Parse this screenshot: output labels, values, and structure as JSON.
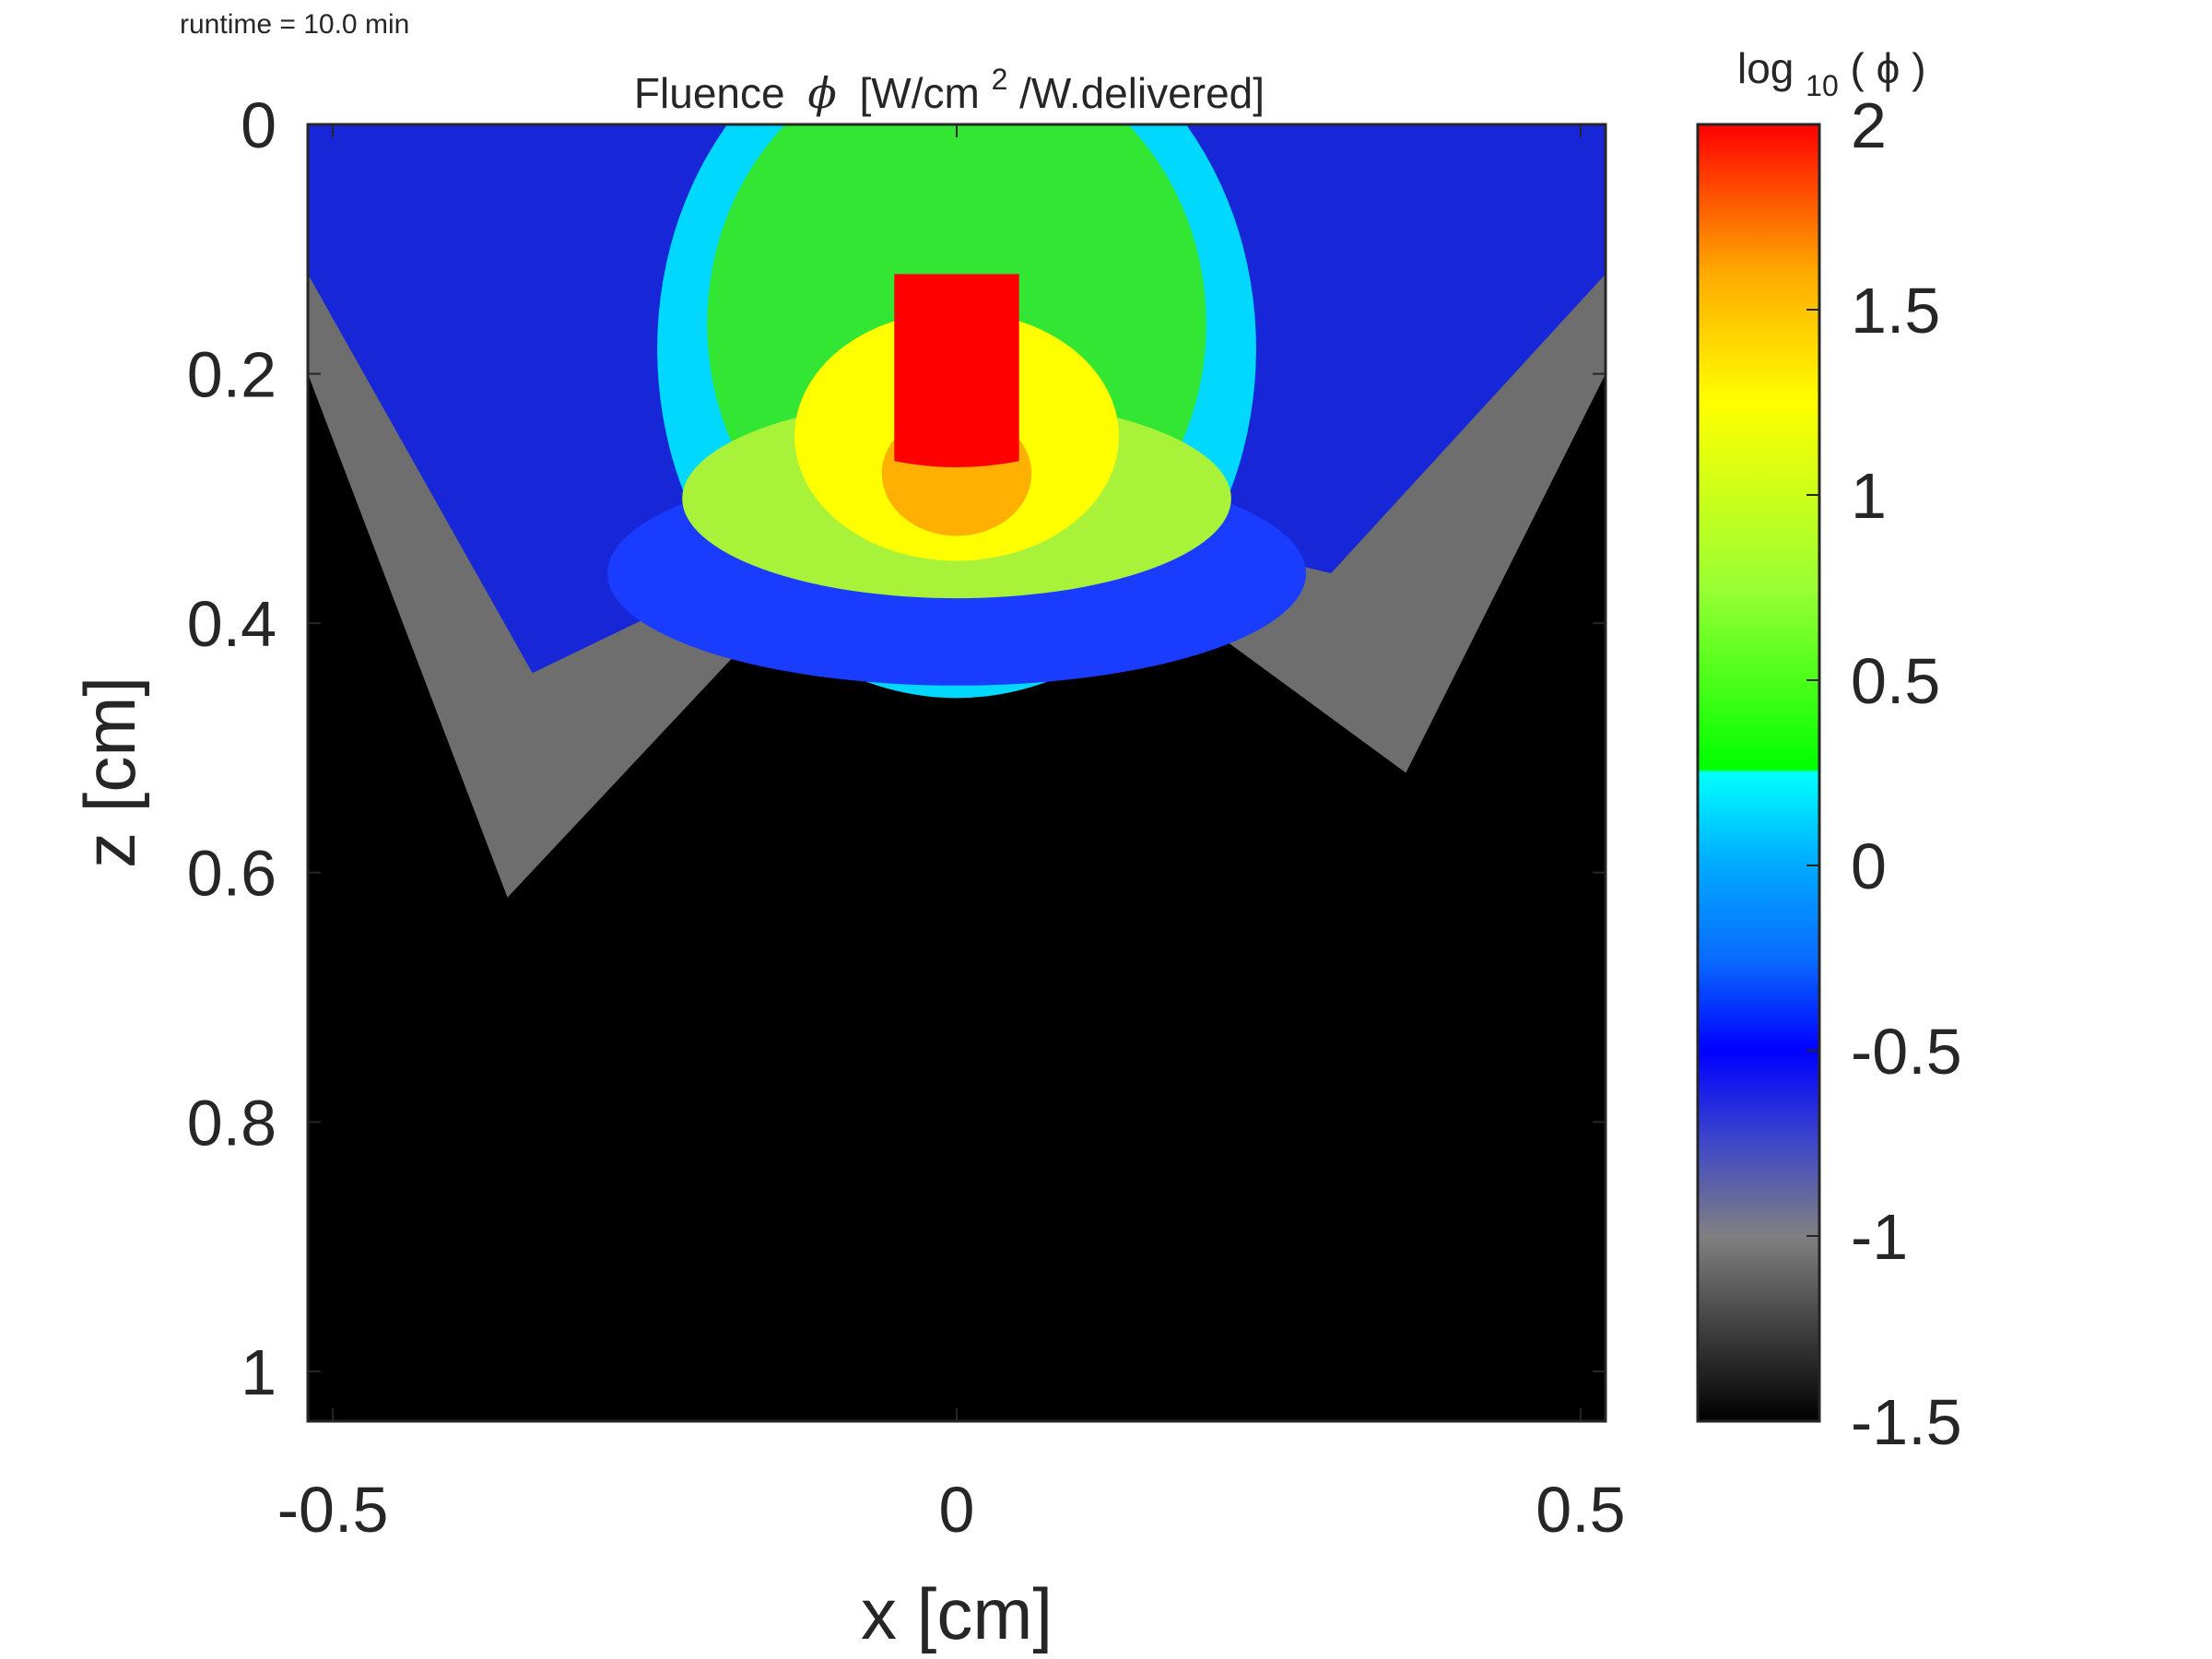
{
  "header": {
    "runtime": "runtime = 10.0 min"
  },
  "chart_data": {
    "type": "heatmap",
    "title": "Fluence",
    "title_symbol": "ϕ",
    "title_unit_prefix": "[W/cm",
    "title_unit_exp": "2",
    "title_unit_suffix": "/W.delivered]",
    "xlabel": "x [cm]",
    "ylabel": "z [cm]",
    "xlim": [
      -0.52,
      0.52
    ],
    "ylim": [
      0,
      1.04
    ],
    "y_reversed": true,
    "xticks": [
      -0.5,
      0,
      0.5
    ],
    "xtick_labels": [
      "-0.5",
      "0",
      "0.5"
    ],
    "yticks": [
      0,
      0.2,
      0.4,
      0.6,
      0.8,
      1
    ],
    "ytick_labels": [
      "0",
      "0.2",
      "0.4",
      "0.6",
      "0.8",
      "1"
    ],
    "colorbar": {
      "label_prefix": "log",
      "label_sub": "10",
      "label_suffix": "( ϕ )",
      "clim": [
        -1.5,
        2
      ],
      "ticks": [
        2,
        1.5,
        1,
        0.5,
        0,
        -0.5,
        -1,
        -1.5
      ],
      "tick_labels": [
        "2",
        "1.5",
        "1",
        "0.5",
        "0",
        "-0.5",
        "-1",
        "-1.5"
      ],
      "colormap": [
        [
          -1.5,
          "#000000"
        ],
        [
          -1.0,
          "#808080"
        ],
        [
          -0.75,
          "#3f48c8"
        ],
        [
          -0.5,
          "#0000ff"
        ],
        [
          -0.25,
          "#0a6cff"
        ],
        [
          0.0,
          "#00a9ff"
        ],
        [
          0.25,
          "#00ffff"
        ],
        [
          0.26,
          "#00ff00"
        ],
        [
          0.75,
          "#99ff33"
        ],
        [
          1.25,
          "#ffff00"
        ],
        [
          1.6,
          "#ffaa00"
        ],
        [
          2.0,
          "#ff0000"
        ]
      ]
    },
    "source_region": {
      "x": [
        -0.05,
        0.05
      ],
      "z": [
        0.12,
        0.27
      ],
      "log10_value": 2
    },
    "background_log10": -1.5,
    "field_description": "Peak fluence at a narrow source block centered at x=0, z≈0.12–0.27 cm; green/yellow halo to z≈0.35 cm; blue-to-grey tails spreading up to surface and down to z≈0.65 cm at |x|≈0.35 cm; black elsewhere"
  }
}
